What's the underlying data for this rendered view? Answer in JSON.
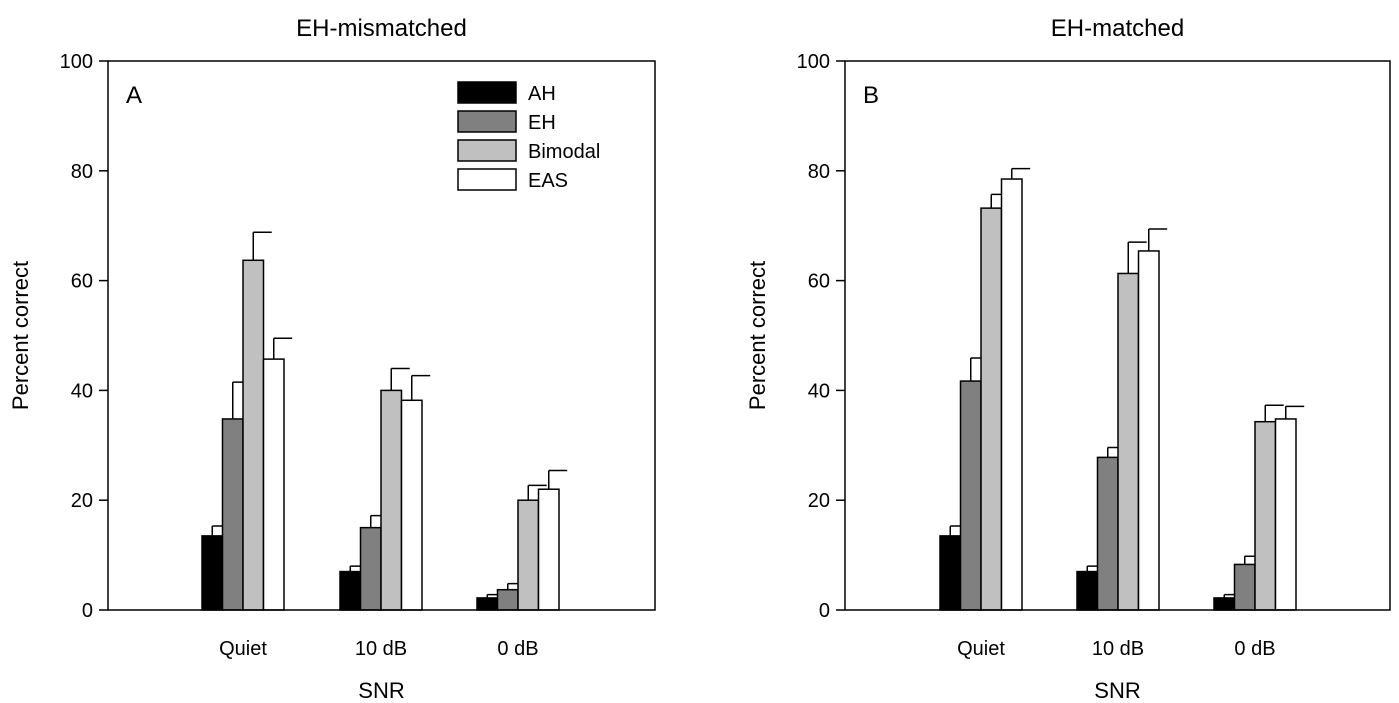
{
  "chart_data": [
    {
      "type": "bar",
      "title": "EH-mismatched",
      "panel_label": "A",
      "xlabel": "SNR",
      "ylabel": "Percent correct",
      "ylim": [
        0,
        100
      ],
      "yticks": [
        0,
        20,
        40,
        60,
        80,
        100
      ],
      "grid": false,
      "legend": "top-right",
      "categories": [
        "Quiet",
        "10 dB",
        "0 dB"
      ],
      "series": [
        {
          "name": "AH",
          "color": "#000000",
          "values": [
            13.5,
            7.0,
            2.2
          ],
          "errors": [
            1.8,
            1.0,
            0.6
          ]
        },
        {
          "name": "EH",
          "color": "#808080",
          "values": [
            34.8,
            15.0,
            3.7
          ],
          "errors": [
            6.7,
            2.2,
            1.1
          ]
        },
        {
          "name": "Bimodal",
          "color": "#c0c0c0",
          "values": [
            63.7,
            40.0,
            20.0
          ],
          "errors": [
            5.1,
            4.0,
            2.7
          ]
        },
        {
          "name": "EAS",
          "color": "#ffffff",
          "values": [
            45.7,
            38.2,
            22.0
          ],
          "errors": [
            3.8,
            4.5,
            3.4
          ]
        }
      ]
    },
    {
      "type": "bar",
      "title": "EH-matched",
      "panel_label": "B",
      "xlabel": "SNR",
      "ylabel": "Percent correct",
      "ylim": [
        0,
        100
      ],
      "yticks": [
        0,
        20,
        40,
        60,
        80,
        100
      ],
      "grid": false,
      "legend": "none",
      "categories": [
        "Quiet",
        "10 dB",
        "0 dB"
      ],
      "series": [
        {
          "name": "AH",
          "color": "#000000",
          "values": [
            13.5,
            7.0,
            2.2
          ],
          "errors": [
            1.8,
            1.0,
            0.6
          ]
        },
        {
          "name": "EH",
          "color": "#808080",
          "values": [
            41.7,
            27.8,
            8.3
          ],
          "errors": [
            4.2,
            1.8,
            1.5
          ]
        },
        {
          "name": "Bimodal",
          "color": "#c0c0c0",
          "values": [
            73.2,
            61.3,
            34.3
          ],
          "errors": [
            2.5,
            5.7,
            3.0
          ]
        },
        {
          "name": "EAS",
          "color": "#ffffff",
          "values": [
            78.5,
            65.4,
            34.8
          ],
          "errors": [
            1.9,
            4.0,
            2.3
          ]
        }
      ]
    }
  ]
}
